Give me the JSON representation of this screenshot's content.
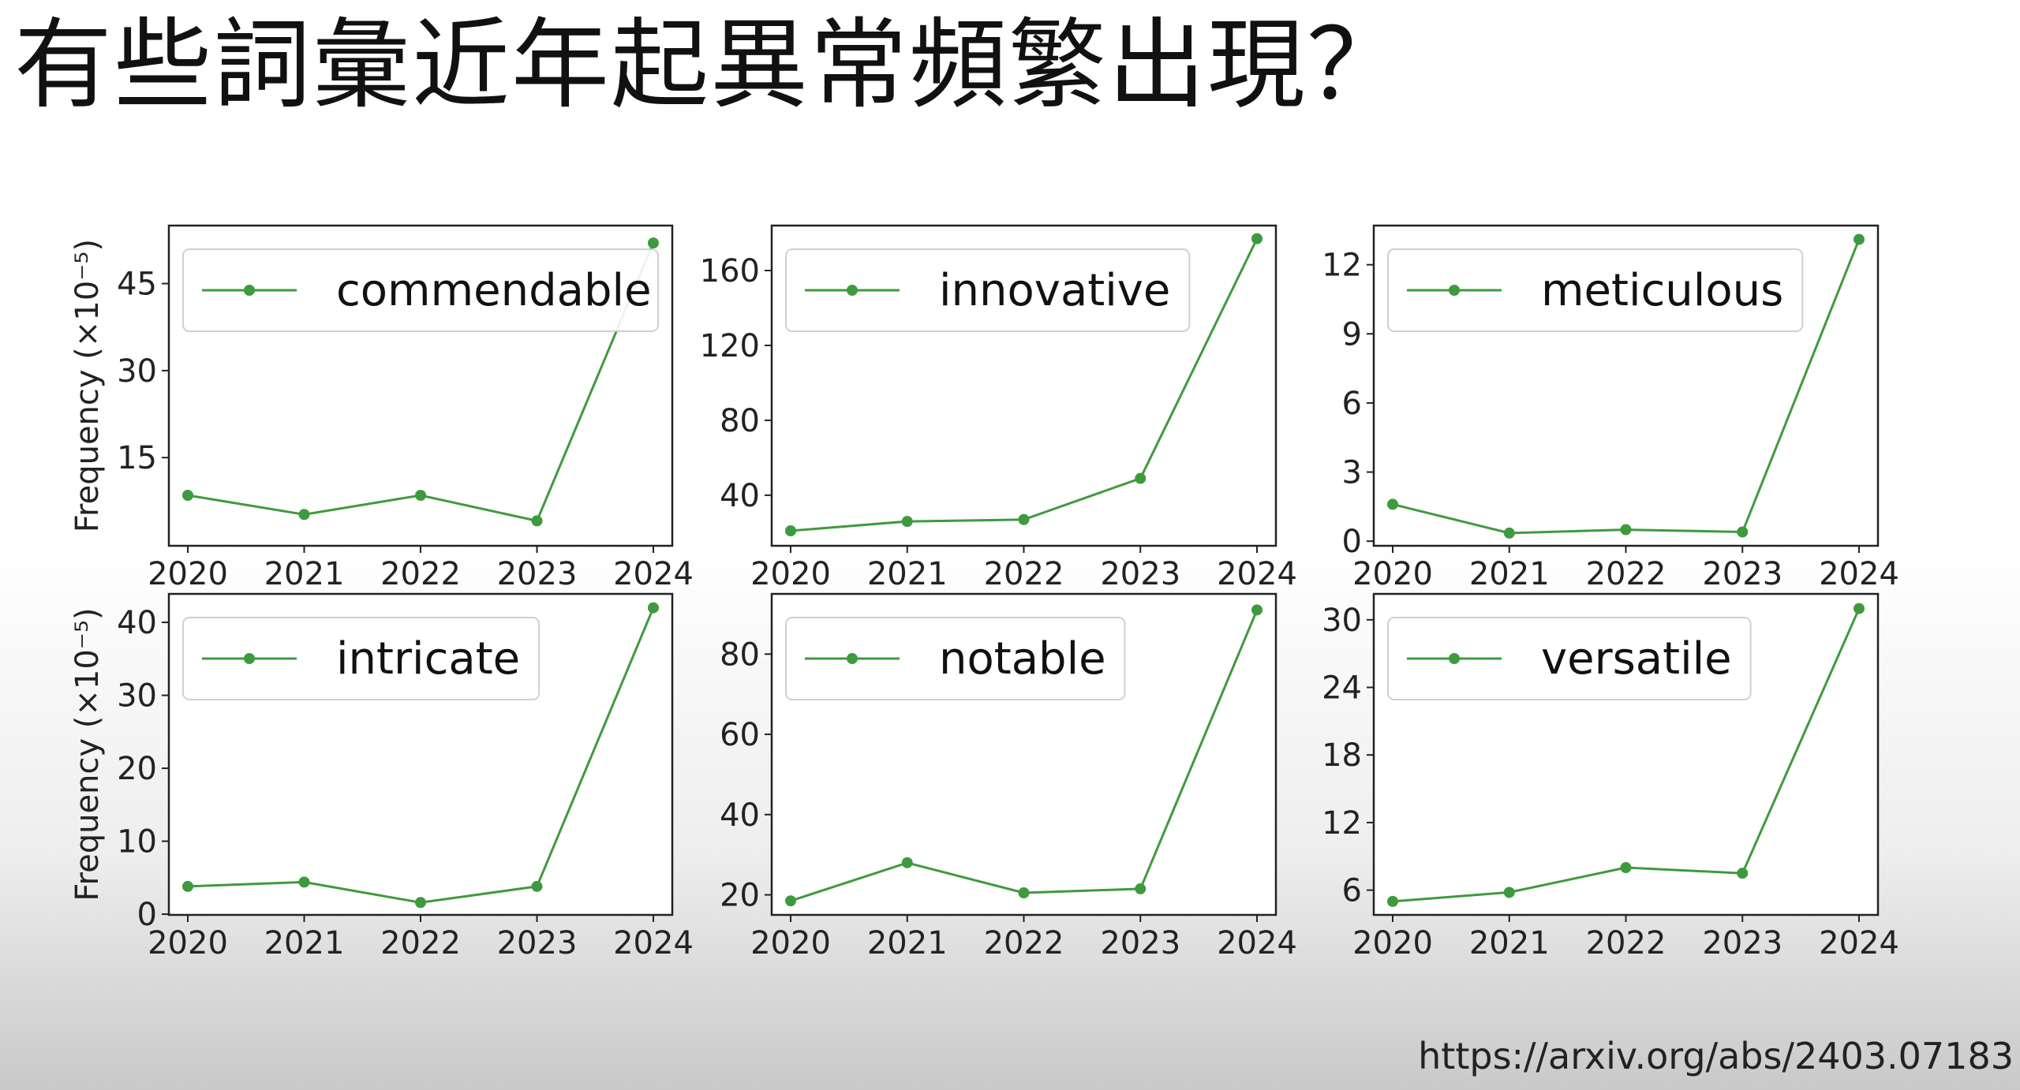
{
  "slide": {
    "title": "有些詞彙近年起異常頻繁出現？",
    "source_url": "https://arxiv.org/abs/2403.07183"
  },
  "colors": {
    "series": "#3f9a3f",
    "axis": "#222222",
    "legend_border": "#cccccc"
  },
  "chart_data": [
    {
      "type": "line",
      "ylabel": "Frequency (×10⁻⁵)",
      "x": [
        "2020",
        "2021",
        "2022",
        "2023",
        "2024"
      ],
      "series": [
        {
          "name": "commendable",
          "values": [
            8.5,
            5.2,
            8.5,
            4.1,
            52
          ]
        }
      ],
      "yticks": [
        "15",
        "30",
        "45"
      ],
      "ylim": [
        -0.2,
        55
      ],
      "legend": "top"
    },
    {
      "type": "line",
      "ylabel": "",
      "x": [
        "2020",
        "2021",
        "2022",
        "2023",
        "2024"
      ],
      "series": [
        {
          "name": "innovative",
          "values": [
            21,
            26,
            27,
            49,
            177
          ]
        }
      ],
      "yticks": [
        "40",
        "80",
        "120",
        "160"
      ],
      "ylim": [
        13,
        184
      ],
      "legend": "top"
    },
    {
      "type": "line",
      "ylabel": "",
      "x": [
        "2020",
        "2021",
        "2022",
        "2023",
        "2024"
      ],
      "series": [
        {
          "name": "meticulous",
          "values": [
            1.6,
            0.35,
            0.5,
            0.4,
            13.1
          ]
        }
      ],
      "yticks": [
        "0",
        "3",
        "6",
        "9",
        "12"
      ],
      "ylim": [
        -0.2,
        13.7
      ],
      "legend": "top"
    },
    {
      "type": "line",
      "ylabel": "Frequency (×10⁻⁵)",
      "x": [
        "2020",
        "2021",
        "2022",
        "2023",
        "2024"
      ],
      "series": [
        {
          "name": "intricate",
          "values": [
            3.8,
            4.4,
            1.6,
            3.8,
            42
          ]
        }
      ],
      "yticks": [
        "0",
        "10",
        "20",
        "30",
        "40"
      ],
      "ylim": [
        -0.1,
        43.9
      ],
      "legend": "top"
    },
    {
      "type": "line",
      "ylabel": "",
      "x": [
        "2020",
        "2021",
        "2022",
        "2023",
        "2024"
      ],
      "series": [
        {
          "name": "notable",
          "values": [
            18.5,
            28,
            20.5,
            21.5,
            91
          ]
        }
      ],
      "yticks": [
        "20",
        "40",
        "60",
        "80"
      ],
      "ylim": [
        15,
        95
      ],
      "legend": "top"
    },
    {
      "type": "line",
      "ylabel": "",
      "x": [
        "2020",
        "2021",
        "2022",
        "2023",
        "2024"
      ],
      "series": [
        {
          "name": "versatile",
          "values": [
            5,
            5.8,
            8,
            7.5,
            31
          ]
        }
      ],
      "yticks": [
        "6",
        "12",
        "18",
        "24",
        "30"
      ],
      "ylim": [
        3.8,
        32.3
      ],
      "legend": "top"
    }
  ]
}
